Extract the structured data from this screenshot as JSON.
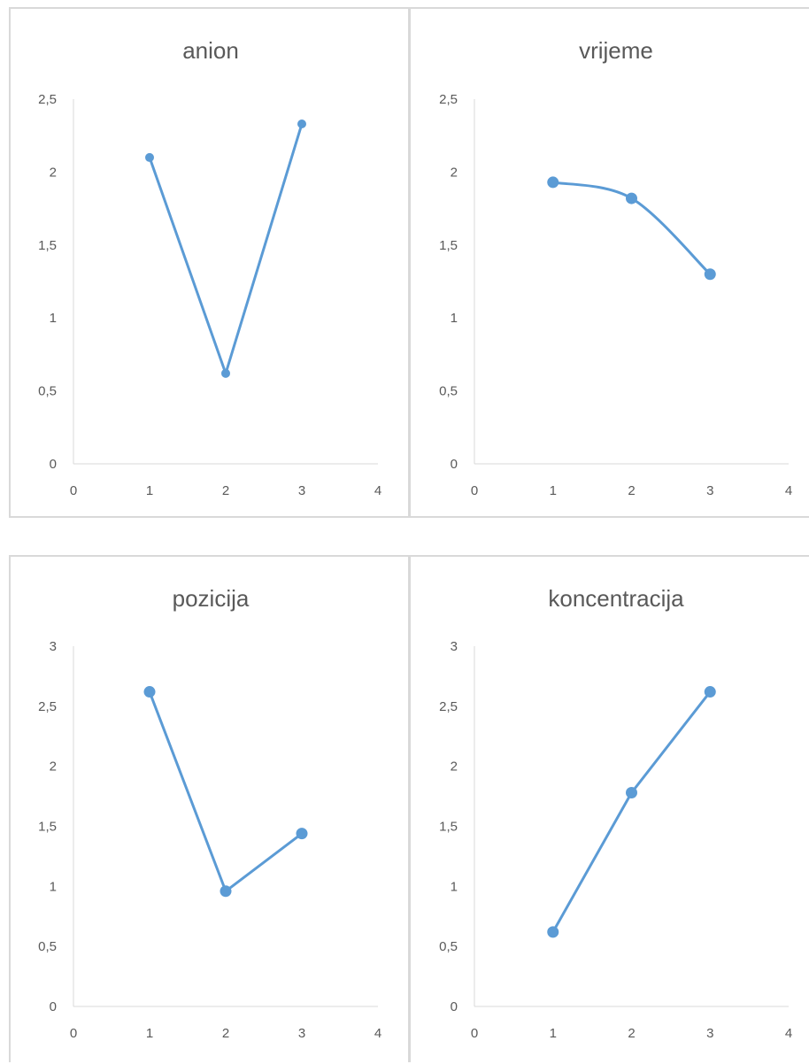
{
  "chart_data": [
    {
      "type": "scatter",
      "title": "anion",
      "x": [
        1,
        2,
        3
      ],
      "y": [
        2.1,
        0.62,
        2.33
      ],
      "smooth": false,
      "xlim": [
        0,
        4
      ],
      "ylim": [
        0,
        2.5
      ],
      "xticks": [
        "0",
        "1",
        "2",
        "3",
        "4"
      ],
      "yticks": [
        "0",
        "0,5",
        "1",
        "1,5",
        "2",
        "2,5"
      ],
      "grid": false,
      "color": "#5b9bd5",
      "xlabel": "",
      "ylabel": ""
    },
    {
      "type": "scatter",
      "title": "vrijeme",
      "x": [
        1,
        2,
        3
      ],
      "y": [
        1.93,
        1.82,
        1.3
      ],
      "smooth": true,
      "xlim": [
        0,
        4
      ],
      "ylim": [
        0,
        2.5
      ],
      "xticks": [
        "0",
        "1",
        "2",
        "3",
        "4"
      ],
      "yticks": [
        "0",
        "0,5",
        "1",
        "1,5",
        "2",
        "2,5"
      ],
      "grid": false,
      "color": "#5b9bd5",
      "xlabel": "",
      "ylabel": ""
    },
    {
      "type": "scatter",
      "title": "pozicija",
      "x": [
        1,
        2,
        3
      ],
      "y": [
        2.62,
        0.96,
        1.44
      ],
      "smooth": false,
      "xlim": [
        0,
        4
      ],
      "ylim": [
        0,
        3
      ],
      "xticks": [
        "0",
        "1",
        "2",
        "3",
        "4"
      ],
      "yticks": [
        "0",
        "0,5",
        "1",
        "1,5",
        "2",
        "2,5",
        "3"
      ],
      "grid": false,
      "color": "#5b9bd5",
      "xlabel": "",
      "ylabel": ""
    },
    {
      "type": "scatter",
      "title": "koncentracija",
      "x": [
        1,
        2,
        3
      ],
      "y": [
        0.62,
        1.78,
        2.62
      ],
      "smooth": false,
      "xlim": [
        0,
        4
      ],
      "ylim": [
        0,
        3
      ],
      "xticks": [
        "0",
        "1",
        "2",
        "3",
        "4"
      ],
      "yticks": [
        "0",
        "0,5",
        "1",
        "1,5",
        "2",
        "2,5",
        "3"
      ],
      "grid": false,
      "color": "#5b9bd5",
      "xlabel": "",
      "ylabel": ""
    }
  ]
}
